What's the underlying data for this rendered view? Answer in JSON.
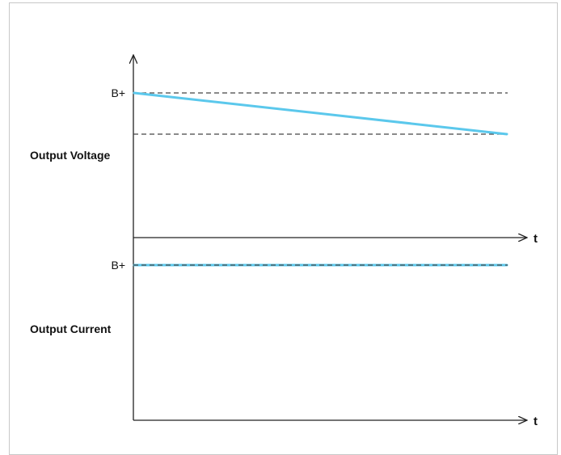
{
  "diagram": {
    "voltage_panel": {
      "label": "Output Voltage",
      "level_label": "B+",
      "time_label": "t"
    },
    "current_panel": {
      "label": "Output Current",
      "level_label": "B+",
      "time_label": "t"
    },
    "colors": {
      "signal": "#5bc8ec",
      "axis": "#222222",
      "reference": "#444444"
    }
  }
}
